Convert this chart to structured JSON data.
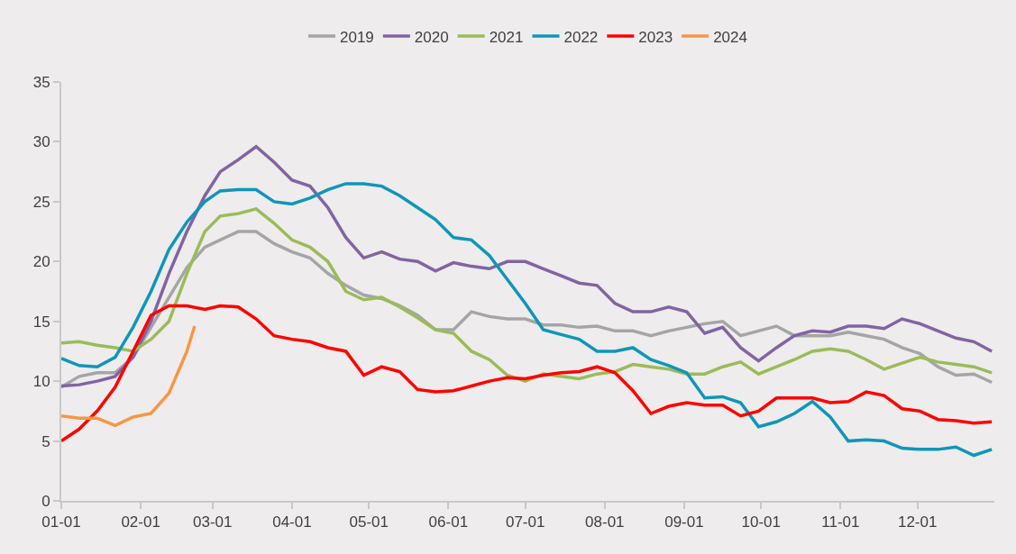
{
  "chart_data": {
    "type": "line",
    "legend": "top",
    "grid": false,
    "marker": "none",
    "line_style": "solid",
    "x": [
      "--01-01",
      "--01-08",
      "--01-15",
      "--01-22",
      "--01-29",
      "--02-05",
      "--02-12",
      "--02-19",
      "--02-26",
      "--03-04",
      "--03-11",
      "--03-18",
      "--03-25",
      "--04-01",
      "--04-08",
      "--04-15",
      "--04-22",
      "--04-29",
      "--05-06",
      "--05-13",
      "--05-20",
      "--05-27",
      "--06-03",
      "--06-10",
      "--06-17",
      "--06-24",
      "--07-01",
      "--07-08",
      "--07-15",
      "--07-22",
      "--07-29",
      "--08-05",
      "--08-12",
      "--08-19",
      "--08-26",
      "--09-02",
      "--09-09",
      "--09-16",
      "--09-23",
      "--09-30",
      "--10-07",
      "--10-14",
      "--10-21",
      "--10-28",
      "--11-04",
      "--11-11",
      "--11-18",
      "--11-25",
      "--12-02",
      "--12-09",
      "--12-16",
      "--12-23",
      "--12-30"
    ],
    "xlim": [
      "--01-01",
      "--12-31"
    ],
    "xticks": [
      {
        "value": "--01-01",
        "label": "01-01"
      },
      {
        "value": "--02-01",
        "label": "02-01"
      },
      {
        "value": "--03-01",
        "label": "03-01"
      },
      {
        "value": "--04-01",
        "label": "04-01"
      },
      {
        "value": "--05-01",
        "label": "05-01"
      },
      {
        "value": "--06-01",
        "label": "06-01"
      },
      {
        "value": "--07-01",
        "label": "07-01"
      },
      {
        "value": "--08-01",
        "label": "08-01"
      },
      {
        "value": "--09-01",
        "label": "09-01"
      },
      {
        "value": "--10-01",
        "label": "10-01"
      },
      {
        "value": "--11-01",
        "label": "11-01"
      },
      {
        "value": "--12-01",
        "label": "12-01"
      }
    ],
    "ylim": [
      0,
      35
    ],
    "yticks": [
      0,
      5,
      10,
      15,
      20,
      25,
      30,
      35
    ],
    "series": [
      {
        "name": "2019",
        "color": "#a5a5a5",
        "values": [
          9.5,
          10.4,
          10.7,
          10.7,
          12.0,
          14.5,
          17.0,
          19.5,
          21.2,
          21.8,
          22.5,
          22.5,
          21.5,
          20.8,
          20.3,
          19.0,
          18.0,
          17.2,
          16.9,
          16.3,
          15.5,
          14.3,
          14.3,
          15.8,
          15.4,
          15.2,
          15.2,
          14.7,
          14.7,
          14.5,
          14.6,
          14.2,
          14.2,
          13.8,
          14.2,
          14.5,
          14.8,
          15.0,
          13.8,
          14.2,
          14.6,
          13.8,
          13.8,
          13.8,
          14.1,
          13.8,
          13.5,
          12.8,
          12.3,
          11.2,
          10.5,
          10.6,
          9.9
        ]
      },
      {
        "name": "2020",
        "color": "#8064a2",
        "values": [
          9.6,
          9.7,
          10.0,
          10.4,
          12.0,
          15.0,
          19.0,
          22.5,
          25.5,
          27.5,
          28.5,
          29.6,
          28.3,
          26.8,
          26.3,
          24.5,
          22.0,
          20.3,
          20.8,
          20.2,
          20.0,
          19.2,
          19.9,
          19.6,
          19.4,
          20.0,
          20.0,
          19.4,
          18.8,
          18.2,
          18.0,
          16.5,
          15.8,
          15.8,
          16.2,
          15.8,
          14.0,
          14.5,
          12.8,
          11.7,
          12.8,
          13.8,
          14.2,
          14.1,
          14.6,
          14.6,
          14.4,
          15.2,
          14.8,
          14.2,
          13.6,
          13.3,
          12.5
        ]
      },
      {
        "name": "2021",
        "color": "#9bbb59",
        "values": [
          13.2,
          13.3,
          13.0,
          12.8,
          12.5,
          13.5,
          15.0,
          19.0,
          22.5,
          23.8,
          24.0,
          24.4,
          23.2,
          21.8,
          21.2,
          20.0,
          17.5,
          16.8,
          17.0,
          16.2,
          15.3,
          14.3,
          14.0,
          12.5,
          11.8,
          10.5,
          10.0,
          10.6,
          10.4,
          10.2,
          10.6,
          10.8,
          11.4,
          11.2,
          11.0,
          10.6,
          10.6,
          11.2,
          11.6,
          10.6,
          11.2,
          11.8,
          12.5,
          12.7,
          12.5,
          11.8,
          11.0,
          11.5,
          12.0,
          11.6,
          11.4,
          11.2,
          10.7
        ]
      },
      {
        "name": "2022",
        "color": "#0f96b8",
        "values": [
          11.9,
          11.3,
          11.2,
          12.0,
          14.5,
          17.5,
          21.0,
          23.3,
          25.0,
          25.9,
          26.0,
          26.0,
          25.0,
          24.8,
          25.3,
          26.0,
          26.5,
          26.5,
          26.3,
          25.5,
          24.5,
          23.5,
          22.0,
          21.8,
          20.5,
          18.5,
          16.5,
          14.3,
          13.9,
          13.5,
          12.5,
          12.5,
          12.8,
          11.8,
          11.3,
          10.7,
          8.6,
          8.7,
          8.2,
          6.2,
          6.6,
          7.3,
          8.3,
          7.0,
          5.0,
          5.1,
          5.0,
          4.4,
          4.3,
          4.3,
          4.5,
          3.8,
          4.3
        ]
      },
      {
        "name": "2023",
        "color": "#ff0000",
        "values": [
          5.0,
          6.0,
          7.5,
          9.5,
          12.5,
          15.5,
          16.3,
          16.3,
          16.0,
          16.3,
          16.2,
          15.2,
          13.8,
          13.5,
          13.3,
          12.8,
          12.5,
          10.5,
          11.2,
          10.8,
          9.3,
          9.1,
          9.2,
          9.6,
          10.0,
          10.3,
          10.2,
          10.5,
          10.7,
          10.8,
          11.2,
          10.7,
          9.2,
          7.3,
          7.9,
          8.2,
          8.0,
          8.0,
          7.1,
          7.5,
          8.6,
          8.6,
          8.6,
          8.2,
          8.3,
          9.1,
          8.8,
          7.7,
          7.5,
          6.8,
          6.7,
          6.5,
          6.6
        ]
      },
      {
        "name": "2024",
        "color": "#f79646",
        "x": [
          "--01-01",
          "--01-08",
          "--01-15",
          "--01-22",
          "--01-29",
          "--02-05",
          "--02-12",
          "--02-19",
          "--02-22"
        ],
        "values": [
          7.1,
          6.9,
          6.9,
          6.3,
          7.0,
          7.3,
          9.0,
          12.5,
          14.6
        ]
      }
    ]
  }
}
